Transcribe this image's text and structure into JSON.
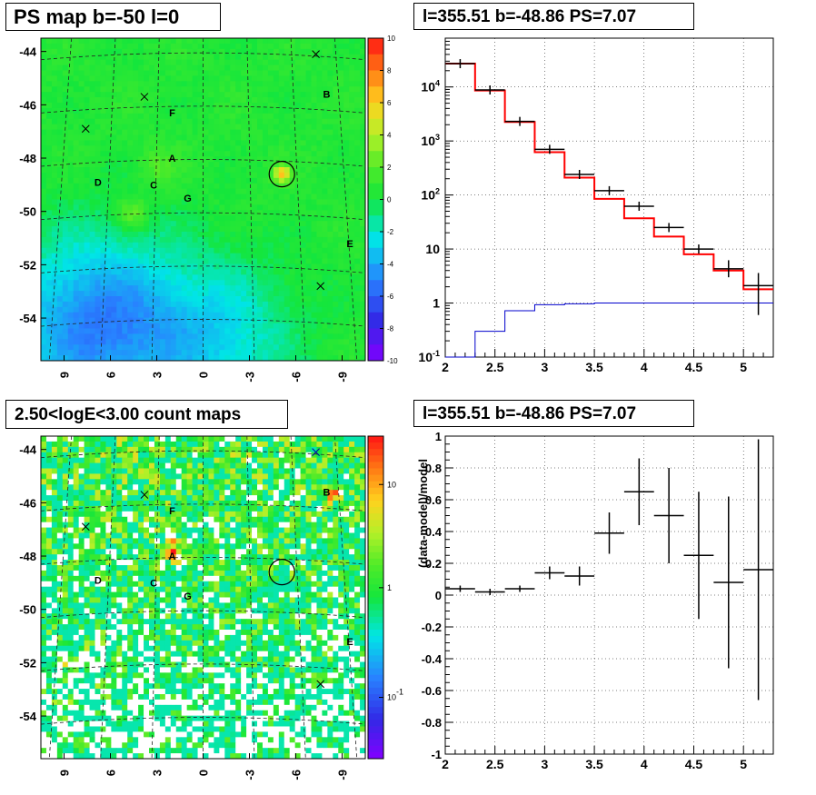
{
  "titles": {
    "ps_map": "PS map b=-50 l=0",
    "spectrum": "l=355.51 b=-48.86 PS=7.07",
    "count_map": "2.50<logE<3.00 count maps",
    "residual": "l=355.51 b=-48.86 PS=7.07"
  },
  "chart_data": [
    {
      "type": "heatmap",
      "title": "PS map b=-50 l=0",
      "x_ticks": [
        "9",
        "6",
        "3",
        "0",
        "-3",
        "-6",
        "-9"
      ],
      "y_ticks": [
        "-44",
        "-46",
        "-48",
        "-50",
        "-52",
        "-54"
      ],
      "x_range": [
        10.5,
        -10.5
      ],
      "y_range": [
        -55.6,
        -43.5
      ],
      "colorbar": {
        "scale": "linear",
        "range": [
          -10,
          10
        ],
        "ticks": [
          "10",
          "8",
          "6",
          "4",
          "2",
          "0",
          "-2",
          "-4",
          "-6",
          "-8",
          "-10"
        ]
      },
      "source_labels": [
        {
          "label": "A",
          "l": 2.0,
          "b": -48.0
        },
        {
          "label": "B",
          "l": -8.0,
          "b": -45.6
        },
        {
          "label": "C",
          "l": 3.2,
          "b": -49.0
        },
        {
          "label": "D",
          "l": 6.8,
          "b": -48.9
        },
        {
          "label": "E",
          "l": -9.5,
          "b": -51.2
        },
        {
          "label": "F",
          "l": 2.0,
          "b": -46.3
        },
        {
          "label": "G",
          "l": 1.0,
          "b": -49.5
        }
      ],
      "crosses": [
        {
          "l": -7.3,
          "b": -44.1
        },
        {
          "l": 3.8,
          "b": -45.7
        },
        {
          "l": 7.6,
          "b": -46.9
        },
        {
          "l": -7.6,
          "b": -52.8
        }
      ],
      "circle": {
        "l": -5.1,
        "b": -48.6
      }
    },
    {
      "type": "line",
      "title": "l=355.51 b=-48.86 PS=7.07",
      "xlabel": "",
      "ylabel": "",
      "xlim": [
        2,
        5.3
      ],
      "ylim": [
        0.1,
        80000
      ],
      "yscale": "log",
      "x_ticks": [
        "2",
        "2.5",
        "3",
        "3.5",
        "4",
        "4.5",
        "5"
      ],
      "y_ticks": [
        "10^-1",
        "1",
        "10",
        "10^2",
        "10^3",
        "10^4"
      ],
      "grid": true,
      "bin_edges": [
        2.0,
        2.3,
        2.6,
        2.9,
        3.2,
        3.5,
        3.8,
        4.1,
        4.4,
        4.7,
        5.0,
        5.3
      ],
      "series": [
        {
          "color": "#ff0000",
          "values": [
            27000,
            8600,
            2250,
            620,
            210,
            85,
            37,
            17,
            8,
            4,
            1.8
          ]
        },
        {
          "color": "#000000",
          "values": [
            27000,
            8800,
            2300,
            700,
            240,
            120,
            62,
            25,
            10,
            4.3,
            2.1
          ],
          "errors_low": [
            0,
            0,
            0,
            0,
            0,
            0,
            0,
            0,
            0,
            1.3,
            1.5
          ],
          "errors_high": [
            0,
            0,
            0,
            0,
            0,
            0,
            0,
            0,
            0,
            1.9,
            1.5
          ]
        },
        {
          "color": "#0000cc",
          "values": [
            0.1,
            0.3,
            0.72,
            0.93,
            0.97,
            1.0,
            1.0,
            1.0,
            1.0,
            1.0,
            1.0
          ]
        }
      ]
    },
    {
      "type": "heatmap",
      "title": "2.50<logE<3.00 count maps",
      "x_ticks": [
        "9",
        "6",
        "3",
        "0",
        "-3",
        "-6",
        "-9"
      ],
      "y_ticks": [
        "-44",
        "-46",
        "-48",
        "-50",
        "-52",
        "-54"
      ],
      "x_range": [
        10.5,
        -10.5
      ],
      "y_range": [
        -55.6,
        -43.5
      ],
      "colorbar": {
        "scale": "log",
        "ticks": [
          "10",
          "1",
          "10^-1"
        ]
      },
      "source_labels": [
        {
          "label": "A",
          "l": 2.0,
          "b": -48.0
        },
        {
          "label": "B",
          "l": -8.0,
          "b": -45.6
        },
        {
          "label": "C",
          "l": 3.2,
          "b": -49.0
        },
        {
          "label": "D",
          "l": 6.8,
          "b": -48.9
        },
        {
          "label": "E",
          "l": -9.5,
          "b": -51.2
        },
        {
          "label": "F",
          "l": 2.0,
          "b": -46.3
        },
        {
          "label": "G",
          "l": 1.0,
          "b": -49.5
        }
      ],
      "crosses": [
        {
          "l": -7.3,
          "b": -44.1
        },
        {
          "l": 3.8,
          "b": -45.7
        },
        {
          "l": 7.6,
          "b": -46.9
        },
        {
          "l": -7.6,
          "b": -52.8
        }
      ],
      "circle": {
        "l": -5.1,
        "b": -48.6
      }
    },
    {
      "type": "scatter",
      "title": "l=355.51 b=-48.86 PS=7.07",
      "xlabel": "",
      "ylabel": "(data-model)/model",
      "xlim": [
        2,
        5.3
      ],
      "ylim": [
        -1,
        1
      ],
      "x_ticks": [
        "2",
        "2.5",
        "3",
        "3.5",
        "4",
        "4.5",
        "5"
      ],
      "y_ticks": [
        "1",
        "0.8",
        "0.6",
        "0.4",
        "0.2",
        "0",
        "-0.2",
        "-0.4",
        "-0.6",
        "-0.8",
        "-1"
      ],
      "grid": true,
      "points": [
        {
          "x": 2.15,
          "y": 0.04,
          "err": 0.02,
          "xerr": 0.15
        },
        {
          "x": 2.45,
          "y": 0.02,
          "err": 0.02,
          "xerr": 0.15
        },
        {
          "x": 2.75,
          "y": 0.04,
          "err": 0.02,
          "xerr": 0.15
        },
        {
          "x": 3.05,
          "y": 0.14,
          "err": 0.04,
          "xerr": 0.15
        },
        {
          "x": 3.35,
          "y": 0.12,
          "err": 0.06,
          "xerr": 0.15
        },
        {
          "x": 3.65,
          "y": 0.39,
          "err": 0.13,
          "xerr": 0.15
        },
        {
          "x": 3.95,
          "y": 0.65,
          "err": 0.21,
          "xerr": 0.15
        },
        {
          "x": 4.25,
          "y": 0.5,
          "err": 0.3,
          "xerr": 0.15
        },
        {
          "x": 4.55,
          "y": 0.25,
          "err": 0.4,
          "xerr": 0.15
        },
        {
          "x": 4.85,
          "y": 0.08,
          "err": 0.54,
          "xerr": 0.15
        },
        {
          "x": 5.15,
          "y": 0.16,
          "err": 0.82,
          "xerr": 0.15
        }
      ]
    }
  ]
}
